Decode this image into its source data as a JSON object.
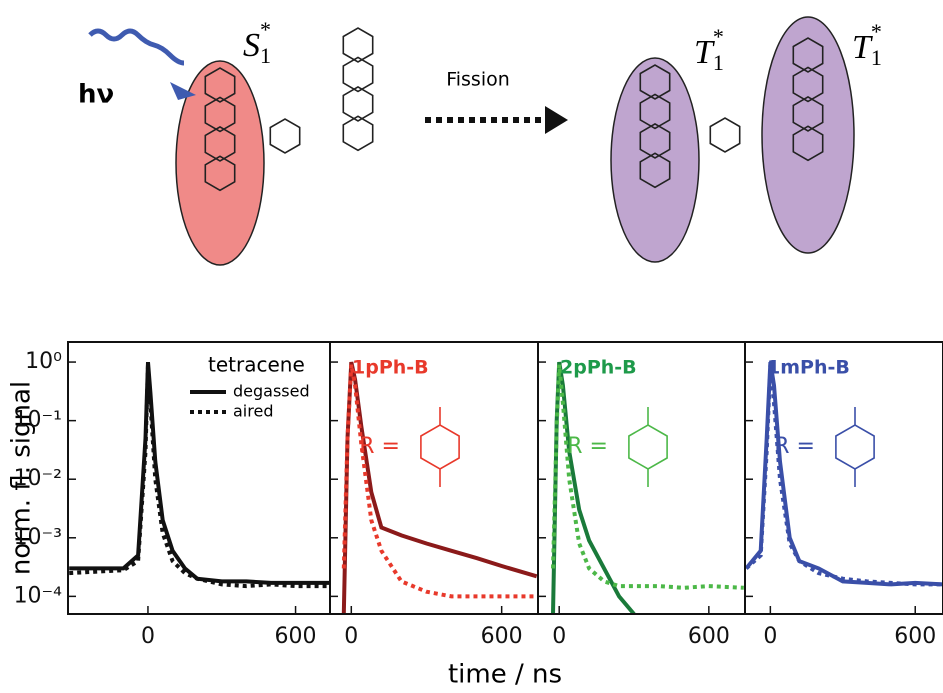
{
  "diagram": {
    "light": "hν",
    "fission": "Fission",
    "singlet": {
      "letter": "S",
      "sub": "1",
      "sup": "*"
    },
    "triplet_a": {
      "letter": "T",
      "sub": "1",
      "sup": "*"
    },
    "triplet_b": {
      "letter": "T",
      "sub": "1",
      "sup": "*"
    }
  },
  "figure": {
    "ylabel": "norm. fl. signal",
    "xlabel": "time / ns"
  },
  "chart_data": [
    {
      "type": "line",
      "legend_title": "tetracene",
      "log_y": true,
      "xlim": [
        -325,
        740
      ],
      "xticks": [
        0,
        600
      ],
      "ylim": [
        5e-05,
        2.2
      ],
      "yticks": [
        {
          "value": 1,
          "label": "10⁰"
        },
        {
          "value": 0.1,
          "label": "10⁻¹"
        },
        {
          "value": 0.01,
          "label": "10⁻²"
        },
        {
          "value": 0.001,
          "label": "10⁻³"
        },
        {
          "value": 0.0001,
          "label": "10⁻⁴"
        }
      ],
      "x": [
        -320,
        -100,
        -40,
        -10,
        0,
        10,
        30,
        60,
        100,
        150,
        200,
        300,
        400,
        500,
        600,
        740
      ],
      "series": [
        {
          "name": "degassed",
          "style": "solid",
          "color": "#111111",
          "values": [
            0.0003,
            0.0003,
            0.0005,
            0.05,
            1,
            0.3,
            0.02,
            0.002,
            0.0006,
            0.0003,
            0.0002,
            0.00018,
            0.00018,
            0.00017,
            0.00017,
            0.00017
          ]
        },
        {
          "name": "aired",
          "style": "dotted",
          "color": "#111111",
          "values": [
            0.00025,
            0.00028,
            0.0004,
            0.03,
            0.9,
            0.2,
            0.01,
            0.0012,
            0.0004,
            0.00025,
            0.0002,
            0.00016,
            0.00015,
            0.00016,
            0.00015,
            0.00015
          ]
        }
      ]
    },
    {
      "type": "line",
      "title": "1pPh-B",
      "title_color": "#e8392b",
      "r_label": "R =",
      "log_y": true,
      "xlim": [
        -85,
        745
      ],
      "xticks": [
        0,
        600
      ],
      "ylim": [
        5e-05,
        2.2
      ],
      "yticks": [
        1,
        0.1,
        0.01,
        0.001,
        0.0001
      ],
      "x": [
        -30,
        -15,
        0,
        15,
        40,
        80,
        120,
        200,
        300,
        400,
        500,
        600,
        740
      ],
      "series": [
        {
          "style": "solid",
          "color": "#8b1a1a",
          "values": [
            5e-05,
            0.05,
            1,
            0.5,
            0.08,
            0.006,
            0.0015,
            0.0011,
            0.0008,
            0.0006,
            0.00045,
            0.00033,
            0.00022
          ]
        },
        {
          "style": "dotted",
          "color": "#e8392b",
          "values": [
            0.0003,
            0.05,
            0.9,
            0.4,
            0.04,
            0.002,
            0.0006,
            0.00018,
            0.00012,
            0.0001,
            0.0001,
            0.0001,
            0.0001
          ]
        }
      ]
    },
    {
      "type": "line",
      "title": "2pPh-B",
      "title_color": "#1e9a4a",
      "r_label": "R =",
      "log_y": true,
      "xlim": [
        -85,
        745
      ],
      "xticks": [
        0,
        600
      ],
      "ylim": [
        5e-05,
        2.2
      ],
      "yticks": [
        1,
        0.1,
        0.01,
        0.001,
        0.0001
      ],
      "x": [
        -25,
        -10,
        0,
        15,
        40,
        80,
        120,
        180,
        240,
        300,
        400,
        500,
        600,
        740
      ],
      "series": [
        {
          "style": "solid",
          "color": "#1a7a3a",
          "values": [
            5e-05,
            0.1,
            1,
            0.4,
            0.03,
            0.003,
            0.0009,
            0.0003,
            0.0001,
            5e-05,
            null,
            null,
            null,
            null
          ]
        },
        {
          "style": "dotted",
          "color": "#4cb848",
          "values": [
            0.0003,
            0.08,
            0.9,
            0.2,
            0.01,
            0.0008,
            0.0003,
            0.00018,
            0.00015,
            0.00015,
            0.00015,
            0.00014,
            0.00015,
            0.00014
          ]
        }
      ]
    },
    {
      "type": "line",
      "title": "1mPh-B",
      "title_color": "#3a4fa8",
      "r_label": "R =",
      "log_y": true,
      "xlim": [
        -105,
        715
      ],
      "xticks": [
        0,
        600
      ],
      "ylim": [
        5e-05,
        2.2
      ],
      "yticks": [
        1,
        0.1,
        0.01,
        0.001,
        0.0001
      ],
      "x": [
        -100,
        -40,
        -15,
        0,
        15,
        40,
        80,
        120,
        200,
        300,
        400,
        500,
        600,
        715
      ],
      "series": [
        {
          "style": "solid",
          "color": "#3a4fa8",
          "values": [
            0.0003,
            0.0006,
            0.05,
            1,
            0.4,
            0.02,
            0.001,
            0.0004,
            0.0003,
            0.00018,
            0.00017,
            0.00016,
            0.00017,
            0.00016
          ]
        },
        {
          "style": "dotted",
          "color": "#3a4fa8",
          "values": [
            0.0003,
            0.0005,
            0.03,
            0.9,
            0.2,
            0.01,
            0.0008,
            0.0004,
            0.00025,
            0.0002,
            0.00018,
            0.00017,
            0.00016,
            0.00016
          ]
        }
      ]
    }
  ]
}
